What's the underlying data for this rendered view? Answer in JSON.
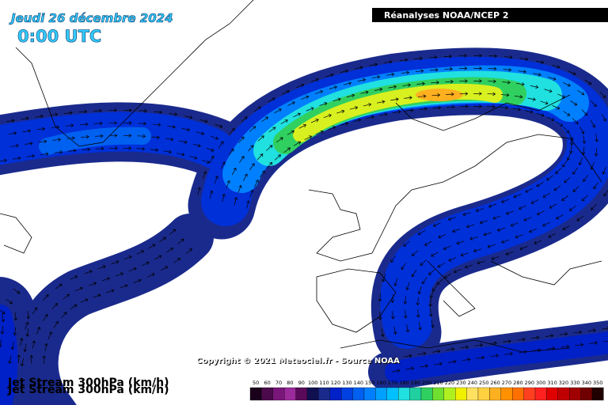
{
  "header": {
    "date": "Jeudi 26 décembre 2024",
    "time": "0:00 UTC",
    "source": "Réanalyses NOAA/NCEP 2"
  },
  "copyright": "Copyright © 2021 Meteociel.fr - Source NOAA",
  "map_title": "Jet Stream 300hPa (km/h)",
  "legend": {
    "labels": [
      50,
      60,
      70,
      80,
      90,
      100,
      110,
      120,
      130,
      140,
      150,
      160,
      170,
      180,
      190,
      200,
      210,
      220,
      230,
      240,
      250,
      260,
      270,
      280,
      290,
      300,
      310,
      320,
      330,
      340,
      350
    ],
    "colors": [
      "#1a001a",
      "#4b0a4b",
      "#7a157a",
      "#9b2a9b",
      "#5a0a5a",
      "#101050",
      "#1a2a8c",
      "#0020c8",
      "#0040e0",
      "#0060f0",
      "#0080ff",
      "#00a0ff",
      "#00c0ff",
      "#20e0e0",
      "#20d0a0",
      "#30d060",
      "#70e030",
      "#b0f020",
      "#f0f000",
      "#ffe060",
      "#ffd040",
      "#ffb020",
      "#ff9000",
      "#ff7000",
      "#ff4020",
      "#ff2020",
      "#e00000",
      "#c00000",
      "#a00000",
      "#700000",
      "#200000"
    ]
  }
}
